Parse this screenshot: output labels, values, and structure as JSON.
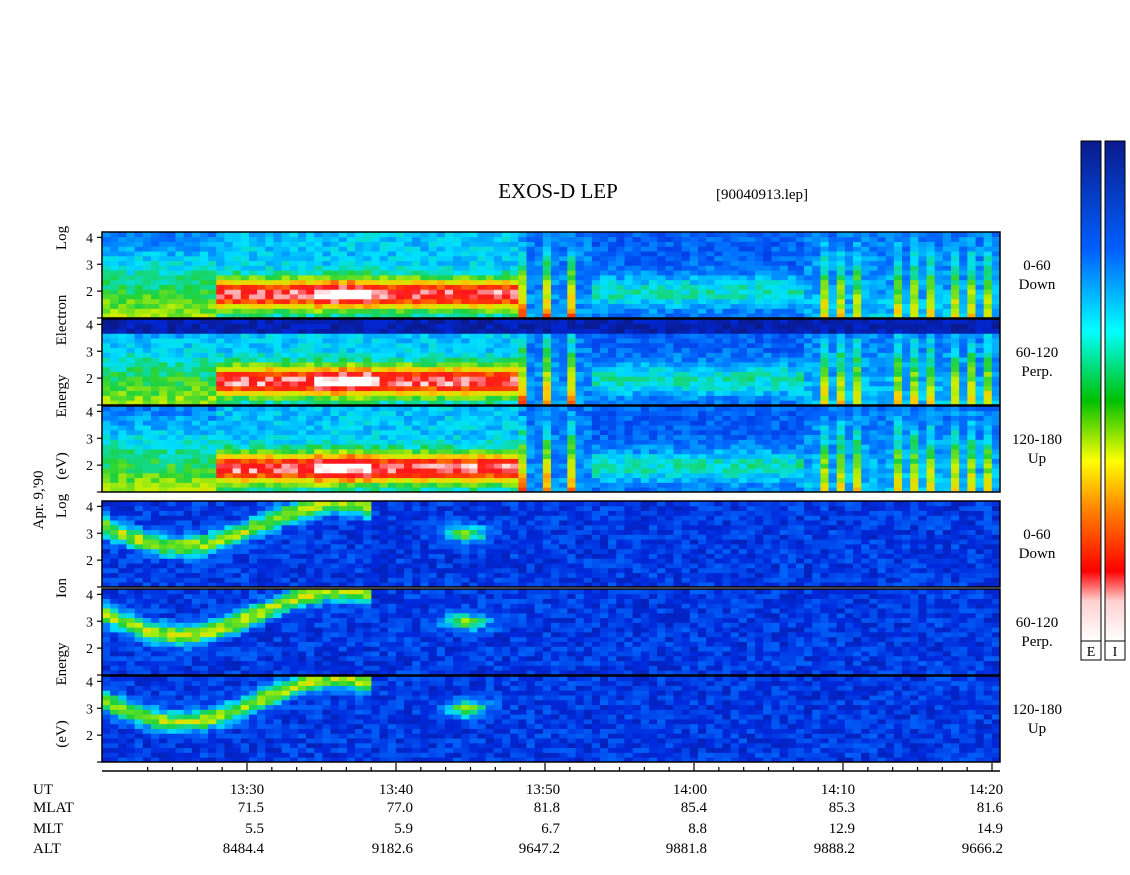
{
  "chart_data": {
    "type": "heatmap",
    "title": "EXOS-D LEP",
    "file_label": "[90040913.lep]",
    "date_label": "Apr. 9,'90",
    "groups": [
      {
        "species": "Electron",
        "ylabel_lines": [
          "Log",
          "Electron",
          "Energy",
          "(eV)"
        ],
        "panels": [
          {
            "pitch": "0-60",
            "direction": "Down"
          },
          {
            "pitch": "60-120",
            "direction": "Perp."
          },
          {
            "pitch": "120-180",
            "direction": "Up"
          }
        ]
      },
      {
        "species": "Ion",
        "ylabel_lines": [
          "Log",
          "Ion",
          "Energy",
          "(eV)"
        ],
        "panels": [
          {
            "pitch": "0-60",
            "direction": "Down"
          },
          {
            "pitch": "60-120",
            "direction": "Perp."
          },
          {
            "pitch": "120-180",
            "direction": "Up"
          }
        ]
      }
    ],
    "y_ticks": [
      "2",
      "3",
      "4"
    ],
    "ylim": [
      1,
      4.2
    ],
    "x_range_minutes": [
      13.15,
      14.2
    ],
    "x_ticks": [
      "13:30",
      "13:40",
      "13:50",
      "14:00",
      "14:10",
      "14:20"
    ],
    "ephemeris": {
      "labels": [
        "UT",
        "MLAT",
        "MLT",
        "ALT"
      ],
      "rows": [
        [
          "71.5",
          "77.0",
          "81.8",
          "85.4",
          "85.3",
          "81.6"
        ],
        [
          "5.5",
          "5.9",
          "6.7",
          "8.8",
          "12.9",
          "14.9"
        ],
        [
          "8484.4",
          "9182.6",
          "9647.2",
          "9881.8",
          "9888.2",
          "9666.2"
        ]
      ]
    },
    "colorbars": [
      {
        "label": "E"
      },
      {
        "label": "I"
      }
    ],
    "colorscale": [
      "#0a1a8c",
      "#0050ff",
      "#00e0ff",
      "#20d040",
      "#ffff00",
      "#ff8000",
      "#ff0000",
      "#ffffff"
    ],
    "grid": false
  }
}
